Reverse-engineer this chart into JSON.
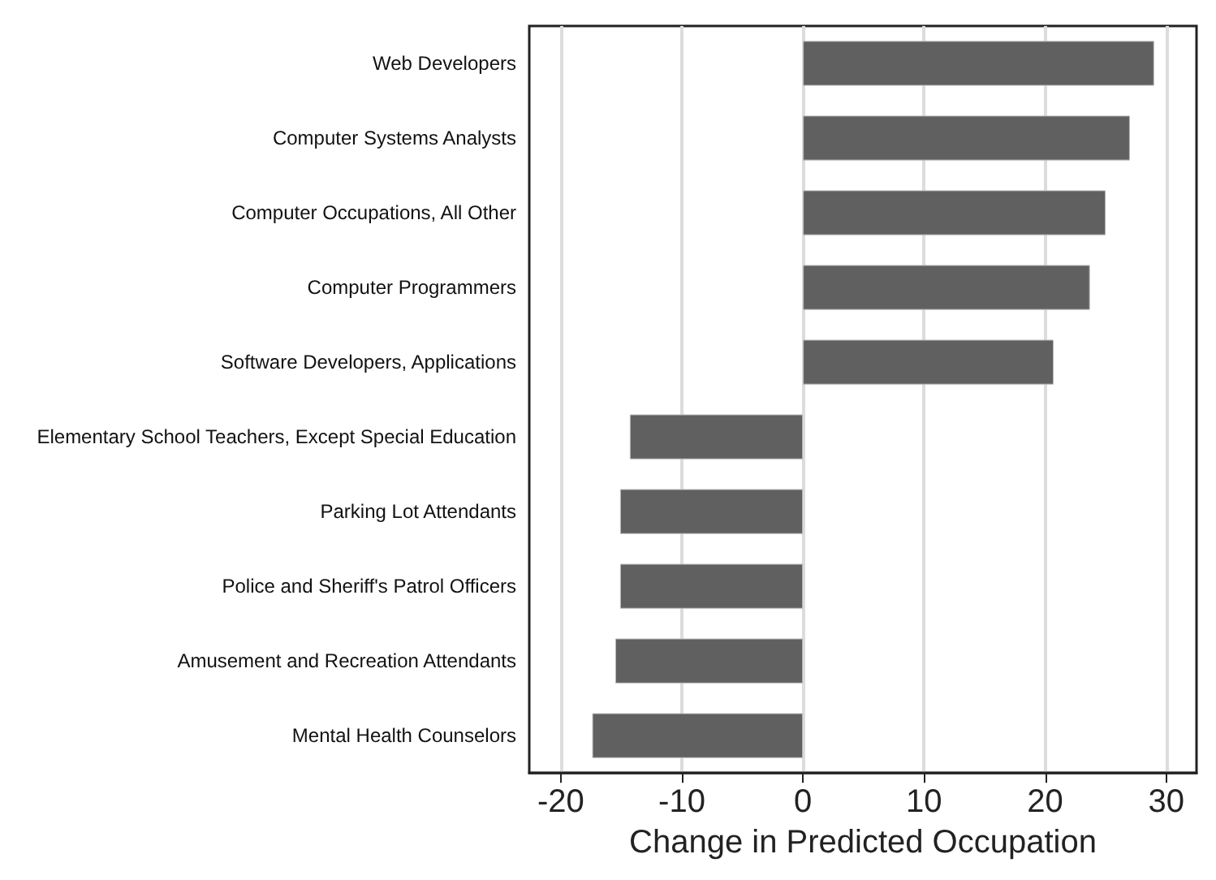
{
  "chart_data": {
    "type": "bar",
    "orientation": "horizontal",
    "xlabel": "Change in Predicted Occupation",
    "categories": [
      "Web Developers",
      "Computer Systems Analysts",
      "Computer Occupations, All Other",
      "Computer Programmers",
      "Software Developers, Applications",
      "Elementary School Teachers, Except Special Education",
      "Parking Lot Attendants",
      "Police and Sheriff's Patrol Officers",
      "Amusement and Recreation Attendants",
      "Mental Health Counselors"
    ],
    "values": [
      29.0,
      27.0,
      25.0,
      23.7,
      20.7,
      -14.3,
      -15.1,
      -15.1,
      -15.5,
      -17.4
    ],
    "color": "#606060",
    "xlim": [
      -22.6,
      32.5
    ],
    "xticks": [
      -20,
      -10,
      0,
      10,
      20,
      30
    ],
    "grid": "x"
  }
}
